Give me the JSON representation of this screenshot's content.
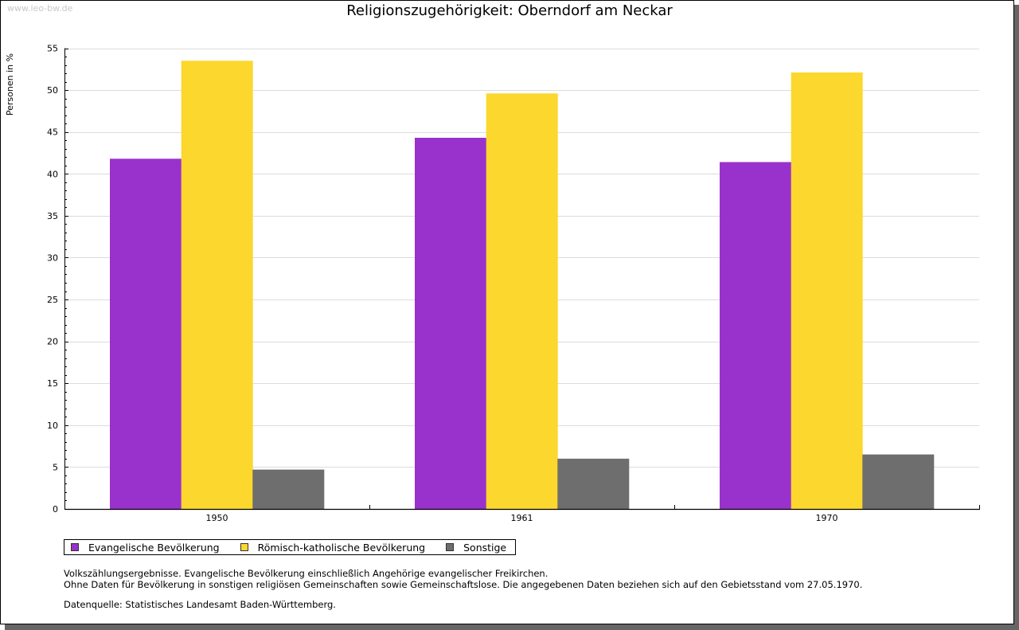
{
  "watermark": "www.leo-bw.de",
  "colors": {
    "evangelisch": "#9932cc",
    "katholisch": "#fcd72d",
    "sonstige": "#6e6e6e",
    "grid": "#dcdcdc"
  },
  "chart_data": {
    "type": "bar",
    "title": "Religionszugehörigkeit: Oberndorf am Neckar",
    "xlabel": "",
    "ylabel": "Personen in %",
    "ylim": [
      0,
      55
    ],
    "yticks": [
      0,
      5,
      10,
      15,
      20,
      25,
      30,
      35,
      40,
      45,
      50,
      55
    ],
    "y_minor_step": 1,
    "grid": true,
    "legend_position": "bottom-left",
    "categories": [
      "1950",
      "1961",
      "1970"
    ],
    "series": [
      {
        "name": "Evangelische Bevölkerung",
        "color": "#9932cc",
        "values": [
          41.8,
          44.3,
          41.4
        ]
      },
      {
        "name": "Römisch-katholische Bevölkerung",
        "color": "#fcd72d",
        "values": [
          53.5,
          49.6,
          52.1
        ]
      },
      {
        "name": "Sonstige",
        "color": "#6e6e6e",
        "values": [
          4.7,
          6.0,
          6.5
        ]
      }
    ]
  },
  "notes": [
    "Volkszählungsergebnisse. Evangelische Bevölkerung einschließlich Angehörige evangelischer Freikirchen.",
    "Ohne Daten für Bevölkerung in sonstigen religiösen Gemeinschaften sowie Gemeinschaftslose. Die angegebenen Daten beziehen sich auf den Gebietsstand vom 27.05.1970."
  ],
  "source": "Datenquelle: Statistisches Landesamt Baden-Württemberg."
}
